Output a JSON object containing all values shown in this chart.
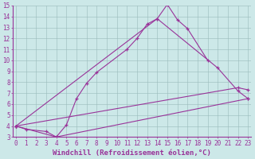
{
  "title": "",
  "xlabel": "Windchill (Refroidissement éolien,°C)",
  "ylabel": "",
  "bg_color": "#cce8e8",
  "line_color": "#993399",
  "grid_color": "#99bbbb",
  "series1": {
    "x": [
      0,
      1,
      3,
      4,
      5,
      6,
      7,
      8,
      11,
      12,
      13,
      14,
      15,
      16,
      17,
      19
    ],
    "y": [
      4.0,
      3.7,
      3.5,
      3.0,
      4.1,
      6.5,
      7.9,
      8.9,
      11.0,
      12.0,
      13.3,
      13.8,
      15.1,
      13.7,
      12.9,
      10.0
    ]
  },
  "series2": {
    "x": [
      0,
      14,
      20,
      22,
      23
    ],
    "y": [
      4.0,
      13.8,
      9.3,
      7.2,
      6.5
    ]
  },
  "series3": {
    "x": [
      0,
      22,
      23
    ],
    "y": [
      4.0,
      7.5,
      7.3
    ]
  },
  "series4": {
    "x": [
      0,
      4,
      23
    ],
    "y": [
      4.0,
      3.0,
      6.5
    ]
  },
  "xlim": [
    0,
    23
  ],
  "ylim": [
    3,
    15
  ],
  "yticks": [
    3,
    4,
    5,
    6,
    7,
    8,
    9,
    10,
    11,
    12,
    13,
    14,
    15
  ],
  "xticks": [
    0,
    1,
    2,
    3,
    4,
    5,
    6,
    7,
    8,
    9,
    10,
    11,
    12,
    13,
    14,
    15,
    16,
    17,
    18,
    19,
    20,
    21,
    22,
    23
  ],
  "tick_fontsize": 5.5,
  "xlabel_fontsize": 6.5
}
